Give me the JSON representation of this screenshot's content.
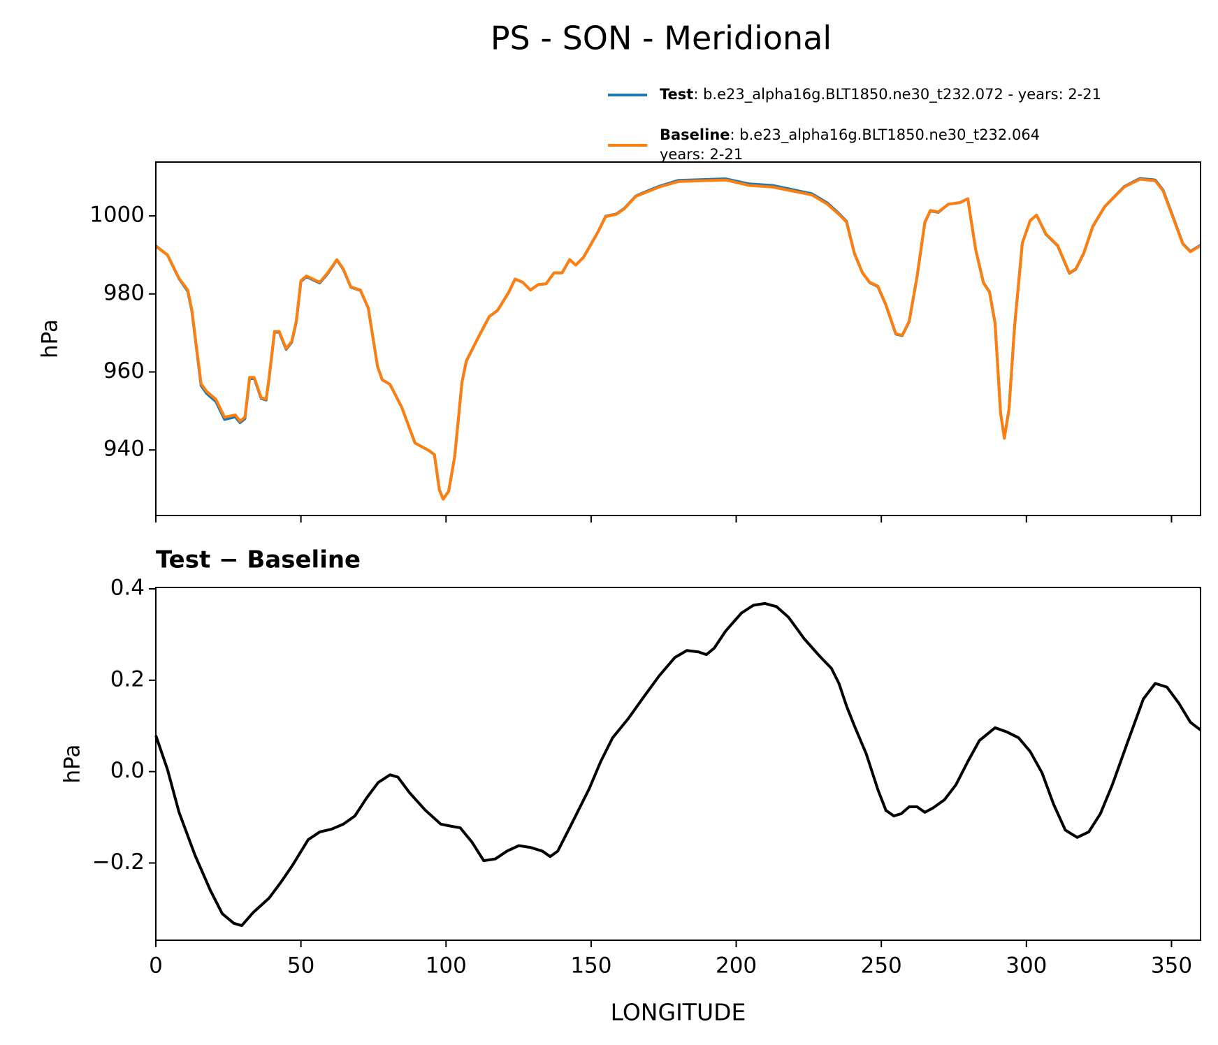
{
  "suptitle": "PS - SON - Meridional",
  "chart_data": [
    {
      "type": "line",
      "ylabel": "hPa",
      "legend": "upper right",
      "xlim": [
        0,
        360
      ],
      "xticks": [
        0,
        50,
        100,
        150,
        200,
        250,
        300,
        350
      ],
      "ylim": [
        923.2,
        1013.8
      ],
      "yticks": [
        940,
        960,
        980,
        1000
      ],
      "x": [
        0,
        4,
        8,
        11,
        12.4,
        15.6,
        17.5,
        20.7,
        23.7,
        27.4,
        29,
        30.7,
        32.3,
        33.9,
        36.3,
        38,
        39,
        40.9,
        42.5,
        44.9,
        46.8,
        48.4,
        50,
        51.9,
        56.5,
        59.2,
        62.4,
        64.6,
        67.2,
        70.5,
        73.2,
        76.4,
        78,
        80.7,
        84.7,
        89.3,
        94.2,
        96,
        97.7,
        99,
        100.9,
        103,
        105.5,
        107,
        110.8,
        114.9,
        117.8,
        121.6,
        123.8,
        126.4,
        129.1,
        131.8,
        134.5,
        137.2,
        140,
        142.6,
        144.7,
        147.4,
        152.3,
        155,
        158.7,
        161.4,
        165.4,
        169.5,
        173.5,
        180,
        196.4,
        204.5,
        212.5,
        226,
        231.4,
        235.4,
        238,
        240.7,
        243.5,
        246,
        248.8,
        251.5,
        255,
        257.2,
        259.6,
        262.3,
        265,
        266.9,
        269.6,
        273.1,
        277.1,
        279.8,
        282.5,
        285.2,
        287.3,
        289.2,
        291.1,
        292.4,
        294,
        295.9,
        298.6,
        301.3,
        303.5,
        306.7,
        310.8,
        314.8,
        317,
        319.7,
        322.9,
        327,
        333.7,
        339.1,
        344.4,
        347.1,
        350.6,
        353.9,
        356.5,
        360
      ],
      "series": [
        {
          "name": "Test",
          "description": [
            ": b.e23_alpha16g.BLT1850.ne30_t232.072 - years: 2-21"
          ],
          "color": "#1f77b4",
          "values": [
            992.3,
            990,
            983.9,
            980.7,
            975.7,
            956.5,
            954.5,
            952.4,
            947.8,
            948.5,
            947,
            948,
            958.3,
            958.4,
            953.2,
            952.8,
            958.2,
            970.2,
            970.2,
            965.8,
            967.6,
            972.8,
            983.2,
            984.4,
            982.8,
            985.2,
            988.7,
            986.3,
            981.7,
            980.9,
            976.4,
            961.4,
            958,
            956.8,
            951,
            941.8,
            939.8,
            938.8,
            929.8,
            927.4,
            929.4,
            938.4,
            957.4,
            962.8,
            968.4,
            974.2,
            975.8,
            980.4,
            983.8,
            983,
            981,
            982.4,
            982.6,
            985.4,
            985.4,
            988.8,
            987.4,
            989.4,
            995.8,
            999.9,
            1000.5,
            1001.9,
            1005.1,
            1006.4,
            1007.6,
            1009.1,
            1009.5,
            1008.2,
            1007.8,
            1005.7,
            1003.3,
            1000.6,
            998.6,
            990.5,
            985.4,
            982.9,
            981.9,
            977.3,
            969.7,
            969.3,
            972.9,
            984.3,
            998.3,
            1001.3,
            1000.9,
            1003,
            1003.4,
            1004.4,
            991.4,
            982.9,
            980.5,
            972.5,
            949.5,
            943.1,
            950.5,
            971.5,
            993.1,
            998.8,
            1000.2,
            995.3,
            992.3,
            985.3,
            986.3,
            990.3,
            997.3,
            1002.4,
            1007.5,
            1009.6,
            1009.2,
            1006.6,
            999.6,
            992.9,
            990.9,
            992.5
          ]
        },
        {
          "name": "Baseline",
          "description": [
            ": b.e23_alpha16g.BLT1850.ne30_t232.064",
            "years: 2-21"
          ],
          "color": "#ff7f0e",
          "values": [
            992.2,
            990,
            984,
            981,
            976,
            957,
            955,
            953,
            948.4,
            949,
            947.4,
            948.4,
            958.6,
            958.6,
            953.4,
            953,
            958.4,
            970.4,
            970.4,
            966,
            967.8,
            973,
            983.4,
            984.6,
            983,
            985.4,
            988.8,
            986.4,
            981.8,
            981,
            976.4,
            961.4,
            958,
            956.8,
            951,
            941.8,
            939.8,
            938.8,
            929.8,
            927.4,
            929.4,
            938.4,
            957.4,
            962.8,
            968.4,
            974.2,
            975.8,
            980.4,
            983.8,
            983,
            981,
            982.4,
            982.6,
            985.4,
            985.4,
            988.8,
            987.4,
            989.4,
            995.8,
            999.8,
            1000.4,
            1001.8,
            1005,
            1006.2,
            1007.4,
            1008.8,
            1009.2,
            1007.8,
            1007.4,
            1005.4,
            1003,
            1000.4,
            998.4,
            990.4,
            985.4,
            983,
            982,
            977.4,
            969.8,
            969.4,
            973,
            984.4,
            998.4,
            1001.4,
            1001,
            1003,
            1003.4,
            1004.4,
            991.4,
            982.8,
            980.4,
            972.4,
            949.4,
            943,
            950.4,
            971.4,
            993,
            998.8,
            1000.2,
            995.4,
            992.4,
            985.4,
            986.4,
            990.4,
            997.4,
            1002.4,
            1007.4,
            1009.4,
            1009,
            1006.4,
            999.4,
            992.8,
            990.8,
            992.4
          ]
        }
      ]
    },
    {
      "type": "line",
      "title": "Test − Baseline",
      "ylabel": "hPa",
      "xlabel": "LONGITUDE",
      "color": "#000000",
      "xlim": [
        0,
        360
      ],
      "xticks": [
        0,
        50,
        100,
        150,
        200,
        250,
        300,
        350
      ],
      "ylim": [
        -0.369,
        0.403
      ],
      "yticks": [
        {
          "value": -0.2,
          "label": "−0.2"
        },
        {
          "value": 0,
          "label": "0.0"
        },
        0.2,
        0.4
      ],
      "x": [
        0,
        4,
        8,
        13.5,
        18.8,
        22.9,
        26.9,
        29.6,
        33.6,
        39,
        43,
        47.1,
        52.5,
        56.5,
        60.5,
        64.6,
        68.6,
        72.6,
        76.6,
        80.7,
        83.4,
        87.4,
        92.8,
        98.2,
        102.2,
        104.9,
        108.9,
        113,
        117,
        121,
        125.1,
        129.1,
        133.2,
        135.9,
        138.5,
        142.6,
        149.3,
        153.3,
        157.4,
        162.8,
        168.2,
        173.5,
        178.9,
        183,
        187,
        189.7,
        192.4,
        196.4,
        201.8,
        205.9,
        209.9,
        213.9,
        218,
        223.4,
        228.7,
        232.8,
        235.4,
        238.1,
        240.8,
        244.8,
        248.9,
        251.6,
        254.3,
        256.9,
        259.6,
        262.3,
        265,
        267.7,
        271.7,
        275.7,
        279.8,
        283.8,
        289.2,
        293.2,
        297.3,
        301.3,
        305.4,
        309.4,
        313.4,
        317.5,
        321.5,
        325.5,
        329.6,
        334.9,
        340.3,
        344.4,
        348.4,
        352.5,
        356.5,
        360
      ],
      "values": [
        0.079,
        0.005,
        -0.089,
        -0.183,
        -0.26,
        -0.311,
        -0.332,
        -0.337,
        -0.308,
        -0.277,
        -0.243,
        -0.205,
        -0.149,
        -0.132,
        -0.126,
        -0.115,
        -0.097,
        -0.058,
        -0.024,
        -0.007,
        -0.012,
        -0.046,
        -0.084,
        -0.115,
        -0.12,
        -0.123,
        -0.154,
        -0.195,
        -0.191,
        -0.174,
        -0.162,
        -0.166,
        -0.174,
        -0.186,
        -0.174,
        -0.123,
        -0.038,
        0.022,
        0.074,
        0.116,
        0.164,
        0.21,
        0.25,
        0.265,
        0.262,
        0.256,
        0.27,
        0.308,
        0.347,
        0.364,
        0.368,
        0.361,
        0.338,
        0.291,
        0.253,
        0.226,
        0.193,
        0.142,
        0.099,
        0.039,
        -0.041,
        -0.085,
        -0.097,
        -0.092,
        -0.077,
        -0.077,
        -0.089,
        -0.08,
        -0.062,
        -0.029,
        0.022,
        0.068,
        0.096,
        0.087,
        0.074,
        0.044,
        -0.003,
        -0.072,
        -0.128,
        -0.144,
        -0.132,
        -0.092,
        -0.029,
        0.065,
        0.159,
        0.193,
        0.185,
        0.15,
        0.108,
        0.091
      ]
    }
  ]
}
